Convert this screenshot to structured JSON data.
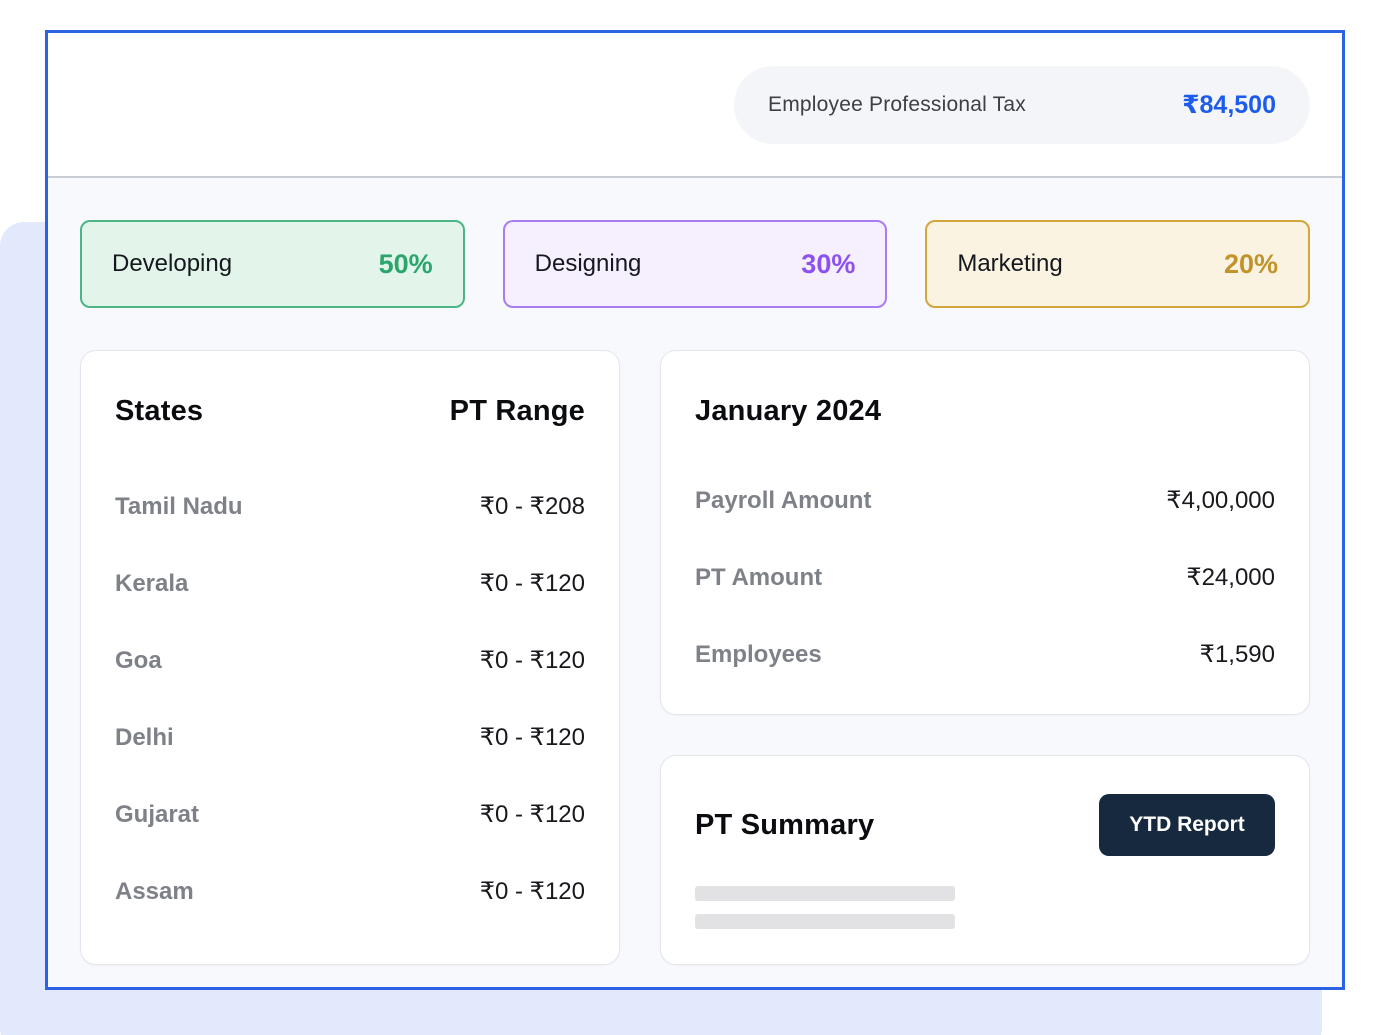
{
  "header": {
    "pill_label": "Employee Professional Tax",
    "pill_value": "₹84,500",
    "pill_value_color": "#1c5beb"
  },
  "badges": [
    {
      "label": "Developing",
      "value": "50%",
      "bg": "#e3f4ea",
      "border": "#4cb586",
      "value_color": "#2aa56b"
    },
    {
      "label": "Designing",
      "value": "30%",
      "bg": "#f6effe",
      "border": "#a97df2",
      "value_color": "#8b52f0"
    },
    {
      "label": "Marketing",
      "value": "20%",
      "bg": "#fbf3e2",
      "border": "#d2a63c",
      "value_color": "#c2932a"
    }
  ],
  "states_card": {
    "col1_header": "States",
    "col2_header": "PT Range",
    "rows": [
      {
        "state": "Tamil Nadu",
        "range": "₹0 - ₹208"
      },
      {
        "state": "Kerala",
        "range": "₹0 - ₹120"
      },
      {
        "state": "Goa",
        "range": "₹0 - ₹120"
      },
      {
        "state": "Delhi",
        "range": "₹0 - ₹120"
      },
      {
        "state": "Gujarat",
        "range": "₹0 - ₹120"
      },
      {
        "state": "Assam",
        "range": "₹0 - ₹120"
      }
    ]
  },
  "month_card": {
    "title": "January 2024",
    "rows": [
      {
        "label": "Payroll Amount",
        "value": "₹4,00,000"
      },
      {
        "label": "PT Amount",
        "value": "₹24,000"
      },
      {
        "label": "Employees",
        "value": "₹1,590"
      }
    ]
  },
  "summary_card": {
    "title": "PT Summary",
    "button_label": "YTD Report"
  },
  "colors": {
    "frame_border": "#2b63e4",
    "body_background": "#f8f9fc",
    "backdrop_accent": "#e3e9fc",
    "divider": "#c9cdd6",
    "button_background": "#16293e"
  }
}
